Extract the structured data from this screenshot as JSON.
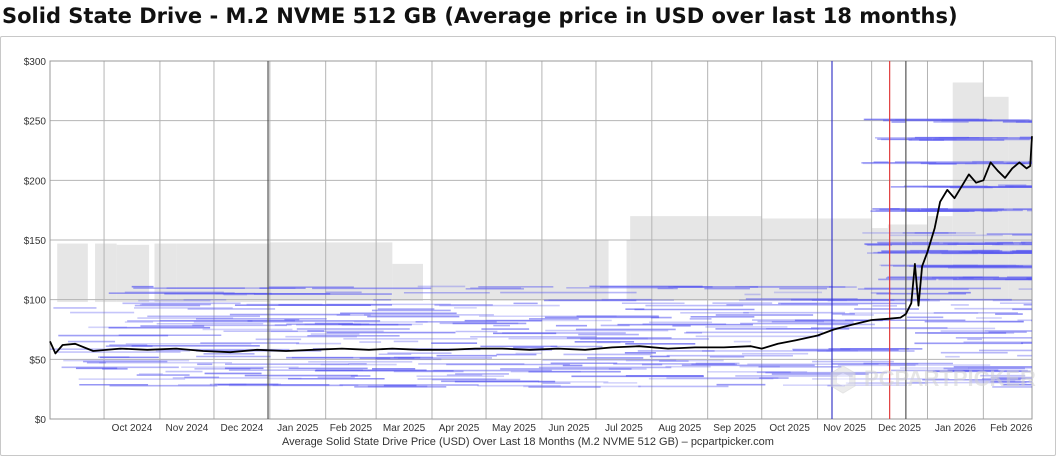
{
  "title": "Solid State Drive - M.2 NVME 512 GB (Average price in USD over last 18 months)",
  "caption": "Average Solid State Drive Price (USD) Over Last 18 Months (M.2 NVME 512 GB) – pcpartpicker.com",
  "watermark": "PCPARTPICKER",
  "colors": {
    "average_line": "#000000",
    "price_band": "#e6e6e6",
    "listing_price": "#5a5af0",
    "marker_blue": "#3a3ac8",
    "marker_red": "#e03c3c",
    "marker_dark": "#555555",
    "grid": "#b4b4b4"
  },
  "chart_data": {
    "type": "line",
    "title": "Solid State Drive - M.2 NVME 512 GB (Average price in USD over last 18 months)",
    "xlabel": "Average Solid State Drive Price (USD) Over Last 18 Months (M.2 NVME 512 GB) – pcpartpicker.com",
    "ylabel": "",
    "x_range": [
      "2024-09-01",
      "2026-02-28"
    ],
    "ylim": [
      0,
      300
    ],
    "y_ticks": [
      0,
      50,
      100,
      150,
      200,
      250,
      300
    ],
    "y_tick_labels": [
      "$0",
      "$50",
      "$100",
      "$150",
      "$200",
      "$250",
      "$300"
    ],
    "x_tick_labels": [
      "Oct 2024",
      "Nov 2024",
      "Dec 2024",
      "Jan 2025",
      "Feb 2025",
      "Mar 2025",
      "Apr 2025",
      "May 2025",
      "Jun 2025",
      "Jul 2025",
      "Aug 2025",
      "Sep 2025",
      "Oct 2025",
      "Nov 2025",
      "Dec 2025",
      "Jan 2026",
      "Feb 2026"
    ],
    "x_month_starts": [
      "2024-10-01",
      "2024-11-01",
      "2024-12-01",
      "2025-01-01",
      "2025-02-01",
      "2025-03-01",
      "2025-04-01",
      "2025-05-01",
      "2025-06-01",
      "2025-07-01",
      "2025-08-01",
      "2025-09-01",
      "2025-10-01",
      "2025-11-01",
      "2025-12-01",
      "2026-01-01",
      "2026-02-01"
    ],
    "grid": true,
    "average_series": {
      "name": "Average price",
      "x": [
        "2024-09-01",
        "2024-09-04",
        "2024-09-08",
        "2024-09-15",
        "2024-09-25",
        "2024-10-10",
        "2024-10-25",
        "2024-11-10",
        "2024-11-25",
        "2024-12-10",
        "2024-12-25",
        "2025-01-10",
        "2025-01-25",
        "2025-02-10",
        "2025-02-25",
        "2025-03-10",
        "2025-03-25",
        "2025-04-10",
        "2025-04-25",
        "2025-05-10",
        "2025-05-25",
        "2025-06-10",
        "2025-06-25",
        "2025-07-10",
        "2025-07-25",
        "2025-08-10",
        "2025-08-25",
        "2025-09-10",
        "2025-09-25",
        "2025-10-01",
        "2025-10-10",
        "2025-10-20",
        "2025-11-01",
        "2025-11-10",
        "2025-11-20",
        "2025-12-01",
        "2025-12-10",
        "2025-12-17",
        "2025-12-20",
        "2025-12-23",
        "2025-12-25",
        "2025-12-27",
        "2025-12-29",
        "2026-01-01",
        "2026-01-05",
        "2026-01-08",
        "2026-01-12",
        "2026-01-16",
        "2026-01-20",
        "2026-01-24",
        "2026-01-28",
        "2026-02-01",
        "2026-02-05",
        "2026-02-09",
        "2026-02-13",
        "2026-02-17",
        "2026-02-21",
        "2026-02-25",
        "2026-02-27",
        "2026-02-28"
      ],
      "y": [
        65,
        55,
        62,
        63,
        57,
        59,
        58,
        59,
        57,
        56,
        58,
        57,
        58,
        59,
        58,
        59,
        58,
        58,
        59,
        59,
        58,
        59,
        58,
        60,
        61,
        59,
        60,
        60,
        61,
        59,
        63,
        66,
        70,
        75,
        79,
        83,
        84,
        85,
        88,
        97,
        130,
        95,
        128,
        140,
        160,
        182,
        192,
        185,
        195,
        205,
        198,
        200,
        215,
        208,
        202,
        210,
        215,
        210,
        212,
        237
      ]
    },
    "price_band": {
      "name": "Price range",
      "x": [
        "2024-09-05",
        "2024-09-25",
        "2024-10-08",
        "2024-10-28",
        "2024-11-10",
        "2025-01-01",
        "2025-03-10",
        "2025-03-30",
        "2025-07-10",
        "2025-07-20",
        "2025-10-01",
        "2025-12-01",
        "2025-12-10",
        "2026-01-01",
        "2026-01-15",
        "2026-02-01",
        "2026-02-15",
        "2026-02-28"
      ],
      "low": [
        98,
        98,
        98,
        98,
        98,
        99,
        99,
        99,
        99,
        99,
        99,
        99,
        99,
        99,
        99,
        99,
        99,
        99
      ],
      "high": [
        147,
        147,
        146,
        147,
        147,
        148,
        130,
        150,
        150,
        170,
        168,
        160,
        163,
        170,
        282,
        270,
        250,
        285
      ]
    },
    "listing_price_levels": [
      28,
      31,
      34,
      37,
      40,
      43,
      46,
      49,
      52,
      55,
      58,
      61,
      64,
      67,
      70,
      73,
      76,
      79,
      82,
      85,
      88,
      92,
      96,
      100,
      105,
      110,
      118,
      128,
      140,
      147,
      155,
      175,
      195,
      215,
      235,
      250
    ],
    "markers": [
      {
        "date": "2024-12-31",
        "color": "#555555"
      },
      {
        "date": "2025-11-09",
        "color": "#3a3ac8"
      },
      {
        "date": "2025-12-11",
        "color": "#e03c3c"
      },
      {
        "date": "2025-12-20",
        "color": "#555555"
      }
    ]
  }
}
